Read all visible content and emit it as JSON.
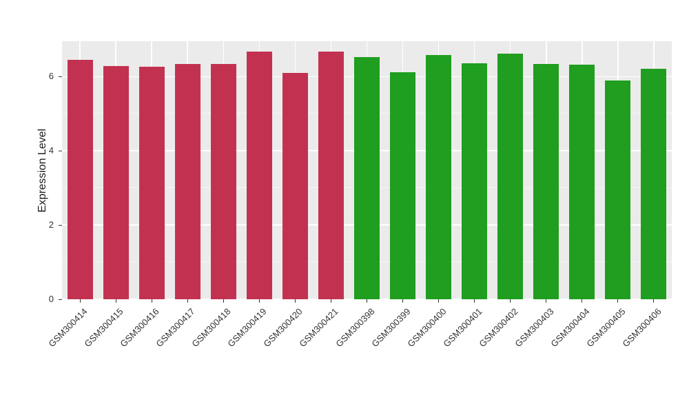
{
  "chart_data": {
    "type": "bar",
    "title": "",
    "xlabel": "",
    "ylabel": "Expression Level",
    "ylim": [
      0,
      6.95
    ],
    "yticks": [
      0,
      2,
      4,
      6
    ],
    "yticks_minor": [
      1,
      3,
      5
    ],
    "grid": "on",
    "legend": "none",
    "categories": [
      "GSM300414",
      "GSM300415",
      "GSM300416",
      "GSM300417",
      "GSM300418",
      "GSM300419",
      "GSM300420",
      "GSM300421",
      "GSM300398",
      "GSM300399",
      "GSM300400",
      "GSM300401",
      "GSM300402",
      "GSM300403",
      "GSM300404",
      "GSM300405",
      "GSM300406"
    ],
    "values": [
      6.45,
      6.28,
      6.27,
      6.33,
      6.33,
      6.68,
      6.1,
      6.68,
      6.52,
      6.12,
      6.58,
      6.35,
      6.62,
      6.33,
      6.32,
      5.9,
      6.2
    ],
    "groups": [
      "group1",
      "group1",
      "group1",
      "group1",
      "group1",
      "group1",
      "group1",
      "group1",
      "group2",
      "group2",
      "group2",
      "group2",
      "group2",
      "group2",
      "group2",
      "group2",
      "group2"
    ],
    "group_colors": {
      "group1": "#C23250",
      "group2": "#1F9E1F"
    },
    "style": {
      "figure_bg": "#FFFFFF",
      "panel_bg": "#EBEBEB",
      "grid_major": "#FFFFFF",
      "grid_minor": "rgba(255,255,255,0.55)",
      "axis_text": "#333333",
      "axis_title": "#1A1A1A",
      "tick_mark": "#333333"
    }
  }
}
